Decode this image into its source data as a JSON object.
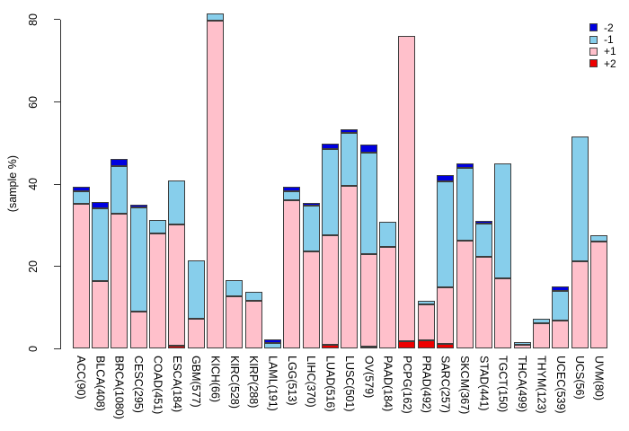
{
  "chart_data": {
    "type": "bar",
    "stacked": true,
    "title": "",
    "xlabel": "",
    "ylabel": "(sample %)",
    "ylim": [
      0,
      80
    ],
    "yticks": [
      0,
      20,
      40,
      60,
      80
    ],
    "grid": false,
    "legend_position": "top-right",
    "legend_order": [
      "-2",
      "-1",
      "+1",
      "+2"
    ],
    "categories": [
      "ACC(90)",
      "BLCA(408)",
      "BRCA(1080)",
      "CESC(295)",
      "COAD(451)",
      "ESCA(184)",
      "GBM(577)",
      "KICH(66)",
      "KIRC(528)",
      "KIRP(288)",
      "LAML(191)",
      "LGG(513)",
      "LIHC(370)",
      "LUAD(516)",
      "LUSC(501)",
      "OV(579)",
      "PAAD(184)",
      "PCPG(162)",
      "PRAD(492)",
      "SARC(257)",
      "SKCM(367)",
      "STAD(441)",
      "TGCT(150)",
      "THCA(499)",
      "THYM(123)",
      "UCEC(539)",
      "UCS(56)",
      "UVM(80)"
    ],
    "series": [
      {
        "name": "+2",
        "color": "#ee0000",
        "values": [
          0,
          0,
          0,
          0,
          0,
          0.7,
          0,
          0,
          0,
          0,
          0,
          0,
          0,
          0.9,
          0,
          0.5,
          0,
          1.9,
          2.1,
          1.2,
          0,
          0,
          0,
          0,
          0,
          0,
          0,
          0
        ]
      },
      {
        "name": "+1",
        "color": "#ffc0cb",
        "values": [
          35.3,
          16.5,
          32.8,
          9.1,
          28,
          29.5,
          7.4,
          79.7,
          12.7,
          11.6,
          0,
          36.2,
          23.7,
          26.8,
          39.5,
          22.6,
          24.7,
          74.1,
          8.7,
          13.7,
          26.2,
          22.3,
          17.2,
          1,
          6.2,
          6.9,
          21.2,
          26
        ]
      },
      {
        "name": "-1",
        "color": "#87ceeb",
        "values": [
          2.9,
          17.6,
          11.7,
          25.2,
          3.4,
          10.8,
          14.2,
          1.8,
          3.9,
          2.2,
          1.5,
          2.1,
          11.1,
          20.9,
          13,
          24.6,
          6.1,
          0,
          0.8,
          25.8,
          17.8,
          8.1,
          27.9,
          0.7,
          1.2,
          7.1,
          30.4,
          1.5
        ]
      },
      {
        "name": "-2",
        "color": "#0000e0",
        "values": [
          1.1,
          1.5,
          1.7,
          0.8,
          0,
          0,
          0,
          0,
          0,
          0,
          0.7,
          1.1,
          0.7,
          1.3,
          0.8,
          2,
          0,
          0,
          0,
          1.6,
          1.1,
          0.7,
          0,
          0,
          0,
          1.1,
          0,
          0
        ]
      }
    ]
  }
}
